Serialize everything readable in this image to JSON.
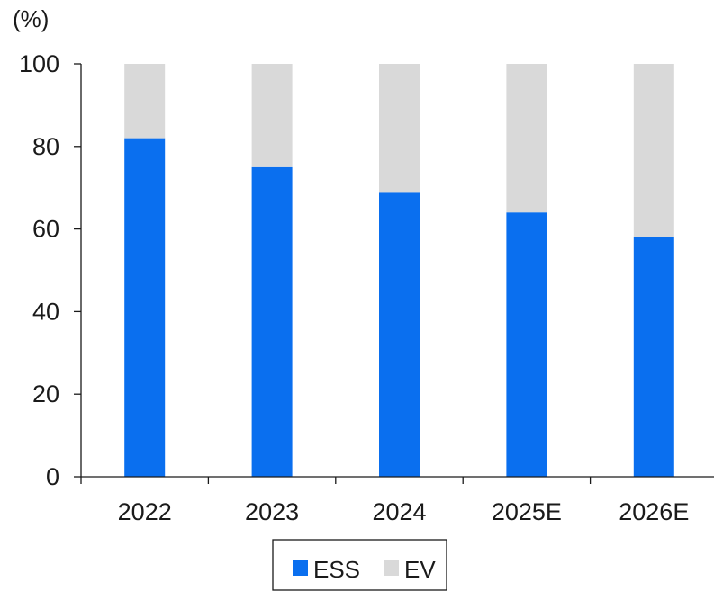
{
  "chart_data": {
    "type": "bar",
    "stacked": true,
    "unit_label": "(%)",
    "categories": [
      "2022",
      "2023",
      "2024",
      "2025E",
      "2026E"
    ],
    "series": [
      {
        "name": "ESS",
        "color": "#0a6fef",
        "values": [
          82,
          75,
          69,
          64,
          58
        ]
      },
      {
        "name": "EV",
        "color": "#d9d9d9",
        "values": [
          18,
          25,
          31,
          36,
          42
        ]
      }
    ],
    "ylim": [
      0,
      100
    ],
    "yticks": [
      "0",
      "20",
      "40",
      "60",
      "80",
      "100"
    ],
    "grid": false,
    "legend": "bottom-center"
  }
}
